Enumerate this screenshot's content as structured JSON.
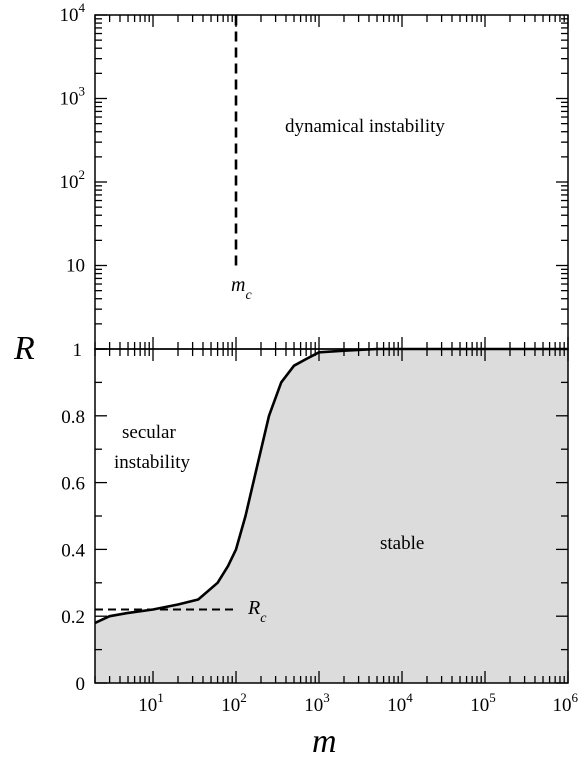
{
  "chart_data": [
    {
      "type": "line",
      "panel": "upper",
      "x_scale": "log",
      "y_scale": "log",
      "xlim": [
        2,
        1000000
      ],
      "ylim": [
        1,
        10000
      ],
      "y_ticks": [
        {
          "value": 10000,
          "base": "10",
          "exp": "4"
        },
        {
          "value": 1000,
          "base": "10",
          "exp": "3"
        },
        {
          "value": 100,
          "base": "10",
          "exp": "2"
        },
        {
          "value": 10,
          "base": "10",
          "exp": ""
        },
        {
          "value": 1,
          "base": "1",
          "exp": ""
        }
      ],
      "series": [
        {
          "style": "dashed",
          "x": [
            100,
            100
          ],
          "y": [
            10,
            10000
          ]
        }
      ],
      "annotations": {
        "region": "dynamical instability",
        "mc_base": "m",
        "mc_sub": "c"
      }
    },
    {
      "type": "area",
      "panel": "lower",
      "x_scale": "log",
      "y_scale": "linear",
      "xlim": [
        2,
        1000000
      ],
      "ylim": [
        0,
        1
      ],
      "grid": false,
      "x_ticks": [
        {
          "value": 10,
          "base": "10",
          "exp": "1"
        },
        {
          "value": 100,
          "base": "10",
          "exp": "2"
        },
        {
          "value": 1000,
          "base": "10",
          "exp": "3"
        },
        {
          "value": 10000,
          "base": "10",
          "exp": "4"
        },
        {
          "value": 100000,
          "base": "10",
          "exp": "5"
        },
        {
          "value": 1000000,
          "base": "10",
          "exp": "6"
        }
      ],
      "y_ticks": [
        {
          "value": 0,
          "label": "0"
        },
        {
          "value": 0.2,
          "label": "0.2"
        },
        {
          "value": 0.4,
          "label": "0.4"
        },
        {
          "value": 0.6,
          "label": "0.6"
        },
        {
          "value": 0.8,
          "label": "0.8"
        }
      ],
      "series": [
        {
          "style": "solid",
          "fill": "#dcdcdc",
          "x": [
            2,
            3,
            5,
            10,
            20,
            35,
            60,
            80,
            100,
            130,
            180,
            250,
            350,
            500,
            700,
            1000,
            2000,
            5000,
            10000,
            100000,
            1000000
          ],
          "y": [
            0.18,
            0.2,
            0.21,
            0.22,
            0.235,
            0.25,
            0.3,
            0.35,
            0.4,
            0.5,
            0.65,
            0.8,
            0.9,
            0.95,
            0.97,
            0.99,
            0.995,
            1.0,
            1.0,
            1.0,
            1.0
          ]
        },
        {
          "style": "dashed",
          "x": [
            2,
            100
          ],
          "y": [
            0.22,
            0.22
          ]
        }
      ],
      "annotations": {
        "secular_line1": "secular",
        "secular_line2": "instability",
        "stable": "stable",
        "rc_base": "R",
        "rc_sub": "c"
      }
    }
  ],
  "axes": {
    "xlabel": "m",
    "ylabel": "R"
  }
}
